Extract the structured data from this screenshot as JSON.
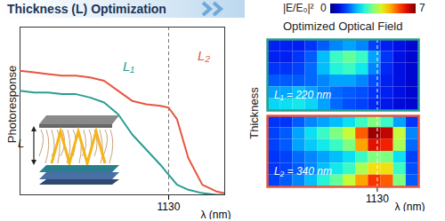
{
  "chart_data": [
    {
      "type": "line",
      "title": "Thickness (L) Optimization",
      "x_label": "λ (nm)",
      "y_label": "Photoresponse",
      "x": [
        600,
        650,
        700,
        750,
        800,
        850,
        900,
        950,
        1000,
        1050,
        1100,
        1130,
        1160,
        1200,
        1250,
        1300,
        1330
      ],
      "xlim": [
        600,
        1330
      ],
      "xticks": [
        1130
      ],
      "ylim": [
        0,
        1
      ],
      "yticks": [],
      "tick_labels": "x",
      "inset_label": "L",
      "series": [
        {
          "name": "L₁",
          "color": "#2a9d8f",
          "values": [
            0.62,
            0.61,
            0.61,
            0.6,
            0.6,
            0.58,
            0.55,
            0.48,
            0.36,
            0.27,
            0.18,
            0.12,
            0.06,
            0.03,
            0.01,
            0.0,
            0.0
          ]
        },
        {
          "name": "L₂",
          "color": "#e8553f",
          "values": [
            0.74,
            0.73,
            0.72,
            0.71,
            0.71,
            0.7,
            0.68,
            0.62,
            0.56,
            0.54,
            0.53,
            0.52,
            0.45,
            0.22,
            0.06,
            0.02,
            0.01
          ]
        }
      ]
    },
    {
      "type": "heatmap",
      "title": "Optimized Optical Field",
      "x_label": "λ (nm)",
      "y_label": "Thickness",
      "xlim": [
        600,
        1330
      ],
      "xticks": [
        1130
      ],
      "tick_labels": "x",
      "colorbar": {
        "title": "|E/E₀|²",
        "range": [
          0,
          7
        ],
        "ticks": [
          0,
          7
        ]
      },
      "panels": [
        {
          "label": "L₁ = 220 nm",
          "color": "#2a9d8f",
          "cells": [
            [
              1,
              1,
              1,
              1.2,
              1.5,
              1.8,
              2,
              1.8,
              1.3,
              1,
              0.8,
              0.6
            ],
            [
              1,
              1,
              1.2,
              1.5,
              2.2,
              3,
              3.3,
              3,
              2,
              1.2,
              0.8,
              0.6
            ],
            [
              1.2,
              1.2,
              1.3,
              1.6,
              2.2,
              2.8,
              3,
              2.6,
              1.8,
              1.1,
              0.8,
              0.6
            ],
            [
              1.5,
              1.5,
              1.5,
              1.6,
              1.8,
              2,
              2,
              1.8,
              1.4,
              1,
              0.8,
              0.6
            ],
            [
              2,
              2,
              2.2,
              2,
              1.8,
              1.6,
              1.5,
              1.4,
              1.2,
              1,
              0.8,
              0.6
            ],
            [
              2.4,
              2.5,
              2.6,
              2.4,
              2,
              1.6,
              1.4,
              1.3,
              1.1,
              0.9,
              0.7,
              0.6
            ]
          ]
        },
        {
          "label": "L₂ = 340 nm",
          "color": "#e8553f",
          "cells": [
            [
              1.2,
              1.2,
              1.5,
              1.8,
              2,
              2.2,
              2.5,
              3,
              3.5,
              3,
              2,
              1.2
            ],
            [
              1.3,
              1.5,
              2,
              2.5,
              3,
              3.5,
              4,
              5.5,
              6.8,
              6.5,
              4,
              1.8
            ],
            [
              1.3,
              1.5,
              2,
              2.3,
              2.6,
              3,
              3.5,
              5,
              6.2,
              6,
              3.8,
              1.6
            ],
            [
              1.2,
              1.3,
              1.6,
              1.8,
              2,
              2.2,
              2.5,
              3,
              3.5,
              3.5,
              2.5,
              1.3
            ],
            [
              1.2,
              1.3,
              1.5,
              1.8,
              2.2,
              2.6,
              3,
              3.8,
              4.5,
              4.5,
              3,
              1.4
            ],
            [
              1.3,
              1.5,
              1.8,
              2.2,
              2.8,
              3.3,
              4,
              5,
              5.8,
              5.5,
              3.5,
              1.5
            ]
          ]
        }
      ]
    }
  ]
}
